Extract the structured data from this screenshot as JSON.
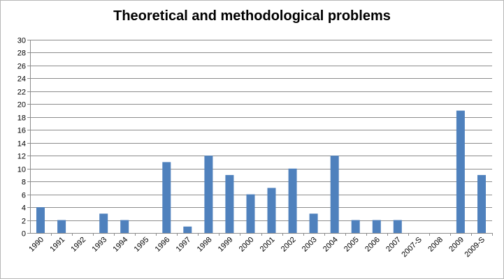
{
  "chart_data": {
    "type": "bar",
    "title": "Theoretical and methodological problems",
    "xlabel": "",
    "ylabel": "",
    "categories": [
      "1990",
      "1991",
      "1992",
      "1993",
      "1994",
      "1995",
      "1996",
      "1997",
      "1998",
      "1999",
      "2000",
      "2001",
      "2002",
      "2003",
      "2004",
      "2005",
      "2006",
      "2007",
      "2007-S",
      "2008",
      "2009",
      "2009-S"
    ],
    "values": [
      4,
      2,
      0,
      3,
      2,
      0,
      11,
      1,
      12,
      9,
      6,
      7,
      10,
      3,
      12,
      2,
      2,
      2,
      0,
      0,
      19,
      9
    ],
    "ylim": [
      0,
      30
    ],
    "yticks": [
      0,
      2,
      4,
      6,
      8,
      10,
      12,
      14,
      16,
      18,
      20,
      22,
      24,
      26,
      28,
      30
    ],
    "grid": true,
    "legend": "none",
    "colors": {
      "bar": "#4f81bd",
      "grid": "#8c8c8c",
      "axis": "#8c8c8c"
    }
  }
}
